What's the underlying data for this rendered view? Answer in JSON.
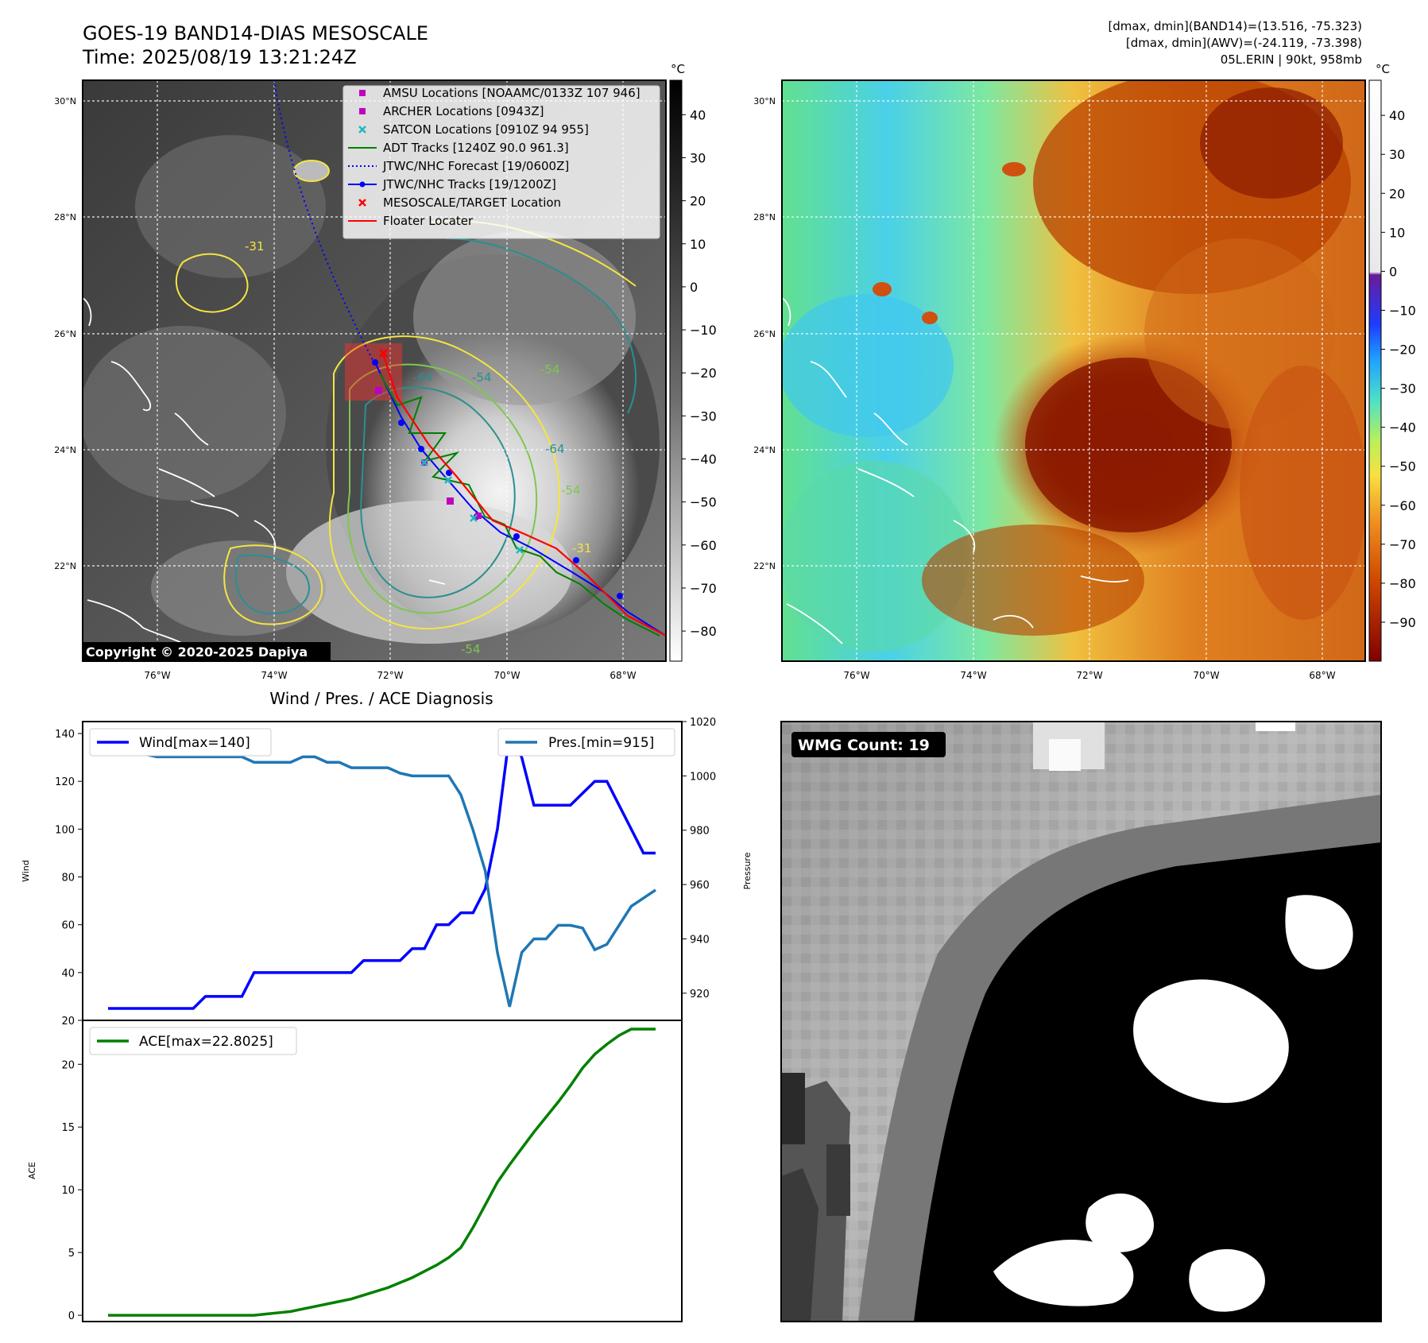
{
  "header": {
    "title_line1": "GOES-19 BAND14-DIAS MESOSCALE",
    "title_line2": "Time: 2025/08/19 13:21:24Z",
    "info_line1": "[dmax, dmin](BAND14)=(13.516, -75.323)",
    "info_line2": "[dmax, dmin](AWV)=(-24.119, -73.398)",
    "info_line3": "05L.ERIN | 90kt, 958mb"
  },
  "map_left": {
    "lat_labels": [
      "30°N",
      "28°N",
      "26°N",
      "24°N",
      "22°N"
    ],
    "lon_labels": [
      "76°W",
      "74°W",
      "72°W",
      "70°W",
      "68°W"
    ],
    "colorbar_unit": "°C",
    "colorbar_ticks": [
      "40",
      "30",
      "20",
      "10",
      "0",
      "−10",
      "−20",
      "−30",
      "−40",
      "−50",
      "−60",
      "−70",
      "−80"
    ],
    "copyright": "Copyright © 2020-2025 Dapiya",
    "contour_labels": [
      "-54",
      "-64",
      "-54",
      "-64",
      "-54",
      "-54",
      "-31",
      "-31"
    ],
    "legend": [
      {
        "label": "AMSU Locations [NOAAMC/0133Z 107 946]",
        "symbol": "square",
        "color": "#c000c0"
      },
      {
        "label": "ARCHER Locations [0943Z]",
        "symbol": "square",
        "color": "#c000c0"
      },
      {
        "label": "SATCON Locations [0910Z 94 955]",
        "symbol": "x",
        "color": "#1fb8c0"
      },
      {
        "label": "ADT Tracks [1240Z 90.0 961.3]",
        "symbol": "line",
        "color": "#008000"
      },
      {
        "label": "JTWC/NHC Forecast [19/0600Z]",
        "symbol": "dotted",
        "color": "#0000ff"
      },
      {
        "label": "JTWC/NHC Tracks [19/1200Z]",
        "symbol": "line-dot",
        "color": "#0000ff"
      },
      {
        "label": "MESOSCALE/TARGET Location",
        "symbol": "x",
        "color": "#ff0000"
      },
      {
        "label": "Floater Locater",
        "symbol": "line",
        "color": "#ff0000"
      }
    ]
  },
  "map_right": {
    "lat_labels": [
      "30°N",
      "28°N",
      "26°N",
      "24°N",
      "22°N"
    ],
    "lon_labels": [
      "76°W",
      "74°W",
      "72°W",
      "70°W",
      "68°W"
    ],
    "colorbar_unit": "°C",
    "colorbar_ticks": [
      "40",
      "30",
      "20",
      "10",
      "0",
      "−10",
      "−20",
      "−30",
      "−40",
      "−50",
      "−60",
      "−70",
      "−80",
      "−90"
    ]
  },
  "wmg": {
    "label": "WMG Count: 19"
  },
  "colors": {
    "wind": "#0000ff",
    "pressure": "#1f77b4",
    "ace": "#008000",
    "red": "#ff0000",
    "contour_yellow": "#f4e542",
    "contour_teal": "#2a8f8f",
    "contour_green": "#7cc84e"
  },
  "chart_data": [
    {
      "type": "line",
      "title": "Wind / Pres. / ACE Diagnosis",
      "ylabel": "Wind",
      "ylabel_right": "Pressure",
      "ylim": [
        20,
        145
      ],
      "ylim_right": [
        910,
        1020
      ],
      "yticks": [
        20,
        40,
        60,
        80,
        100,
        120,
        140
      ],
      "yticks_right": [
        920,
        940,
        960,
        980,
        1000,
        1020
      ],
      "series": [
        {
          "name": "Wind[max=140]",
          "axis": "left",
          "x": [
            0,
            1,
            2,
            3,
            4,
            5,
            6,
            7,
            8,
            9,
            10,
            11,
            12,
            13,
            14,
            15,
            16,
            17,
            18,
            19,
            20,
            21,
            22,
            23,
            24,
            25,
            26,
            27,
            28,
            29,
            30,
            31,
            32,
            33,
            34,
            35,
            36,
            37,
            38,
            39,
            40,
            41,
            42,
            43,
            44,
            45
          ],
          "values": [
            25,
            25,
            25,
            25,
            25,
            25,
            25,
            25,
            30,
            30,
            30,
            30,
            40,
            40,
            40,
            40,
            40,
            40,
            40,
            40,
            40,
            45,
            45,
            45,
            45,
            50,
            50,
            60,
            60,
            65,
            65,
            75,
            100,
            140,
            130,
            110,
            110,
            110,
            110,
            115,
            120,
            120,
            110,
            100,
            90,
            90
          ]
        },
        {
          "name": "Pres.[min=915]",
          "axis": "right",
          "x": [
            0,
            1,
            2,
            3,
            4,
            5,
            6,
            7,
            8,
            9,
            10,
            11,
            12,
            13,
            14,
            15,
            16,
            17,
            18,
            19,
            20,
            21,
            22,
            23,
            24,
            25,
            26,
            27,
            28,
            29,
            30,
            31,
            32,
            33,
            34,
            35,
            36,
            37,
            38,
            39,
            40,
            41,
            42,
            43,
            44,
            45
          ],
          "values": [
            1014,
            1014,
            1009,
            1008,
            1007,
            1007,
            1007,
            1007,
            1007,
            1007,
            1007,
            1007,
            1005,
            1005,
            1005,
            1005,
            1007,
            1007,
            1005,
            1005,
            1003,
            1003,
            1003,
            1003,
            1001,
            1000,
            1000,
            1000,
            1000,
            993,
            980,
            965,
            935,
            915,
            935,
            940,
            940,
            945,
            945,
            944,
            936,
            938,
            945,
            952,
            955,
            958
          ]
        }
      ]
    },
    {
      "type": "line",
      "ylabel": "ACE",
      "ylim": [
        -0.5,
        23.5
      ],
      "yticks": [
        0,
        5,
        10,
        15,
        20
      ],
      "series": [
        {
          "name": "ACE[max=22.8025]",
          "x": [
            0,
            1,
            2,
            3,
            4,
            5,
            6,
            7,
            8,
            9,
            10,
            11,
            12,
            13,
            14,
            15,
            16,
            17,
            18,
            19,
            20,
            21,
            22,
            23,
            24,
            25,
            26,
            27,
            28,
            29,
            30,
            31,
            32,
            33,
            34,
            35,
            36,
            37,
            38,
            39,
            40,
            41,
            42,
            43,
            44,
            45
          ],
          "values": [
            0,
            0,
            0,
            0,
            0,
            0,
            0,
            0,
            0,
            0,
            0,
            0,
            0,
            0.1,
            0.2,
            0.3,
            0.5,
            0.7,
            0.9,
            1.1,
            1.3,
            1.6,
            1.9,
            2.2,
            2.6,
            3.0,
            3.5,
            4.0,
            4.6,
            5.4,
            7.0,
            8.8,
            10.6,
            12.0,
            13.3,
            14.6,
            15.8,
            17.0,
            18.3,
            19.7,
            20.8,
            21.6,
            22.3,
            22.8,
            22.8,
            22.8
          ]
        }
      ]
    }
  ]
}
